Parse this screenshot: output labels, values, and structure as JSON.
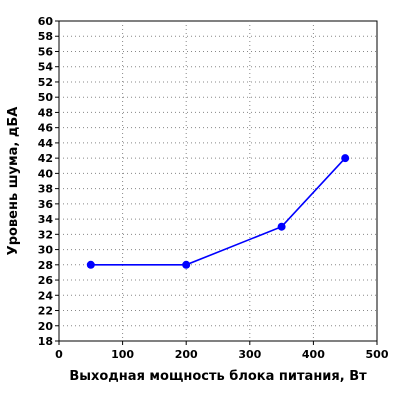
{
  "chart_data": {
    "type": "line",
    "title": "",
    "xlabel": "Выходная мощность блока питания, Вт",
    "ylabel": "Уровень шума, дБА",
    "xlim": [
      0,
      500
    ],
    "ylim": [
      18,
      60
    ],
    "x_ticks": [
      0,
      100,
      200,
      300,
      400,
      500
    ],
    "y_ticks": [
      18,
      20,
      22,
      24,
      26,
      28,
      30,
      32,
      34,
      36,
      38,
      40,
      42,
      44,
      46,
      48,
      50,
      52,
      54,
      56,
      58,
      60
    ],
    "grid": true,
    "series": [
      {
        "x": [
          50,
          200,
          350,
          450
        ],
        "y": [
          28,
          28,
          33,
          42
        ],
        "color": "#0000ff"
      }
    ]
  },
  "colors": {
    "line": "#0000ff",
    "grid": "#888888",
    "axis": "#000000"
  }
}
